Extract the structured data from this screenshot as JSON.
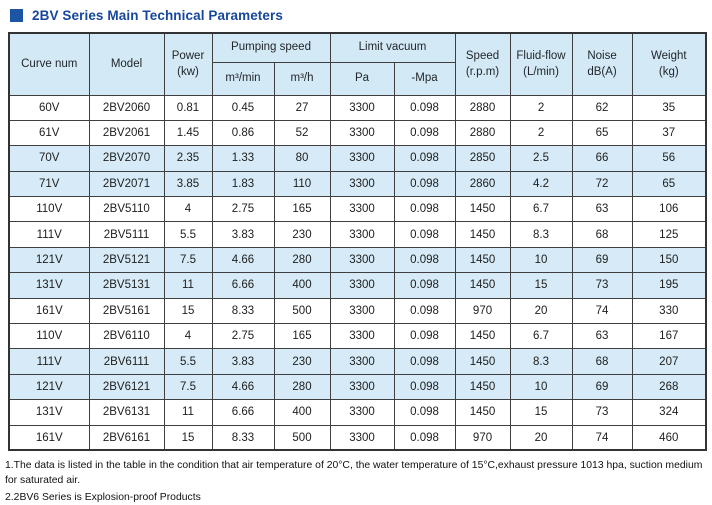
{
  "page_title": "2BV Series Main Technical Parameters",
  "colors": {
    "accent_title": "#16479d",
    "bullet": "#1d55a5",
    "header_bg": "#d3e9f5",
    "stripe_bg": "#d6ebf7",
    "table_border": "#3f3f3f"
  },
  "table": {
    "header": {
      "curve_num": "Curve num",
      "model": "Model",
      "power": "Power\n(kw)",
      "pumping_speed": "Pumping speed",
      "pumping_units": [
        "m³/min",
        "m³/h"
      ],
      "limit_vacuum": "Limit vacuum",
      "vacuum_units": [
        "Pa",
        "-Mpa"
      ],
      "speed": "Speed\n(r.p.m)",
      "fluid_flow": "Fluid-flow\n(L/min)",
      "noise": "Noise\ndB(A)",
      "weight": "Weight\n(kg)"
    },
    "rows": [
      [
        "60V",
        "2BV2060",
        "0.81",
        "0.45",
        "27",
        "3300",
        "0.098",
        "2880",
        "2",
        "62",
        "35"
      ],
      [
        "61V",
        "2BV2061",
        "1.45",
        "0.86",
        "52",
        "3300",
        "0.098",
        "2880",
        "2",
        "65",
        "37"
      ],
      [
        "70V",
        "2BV2070",
        "2.35",
        "1.33",
        "80",
        "3300",
        "0.098",
        "2850",
        "2.5",
        "66",
        "56"
      ],
      [
        "71V",
        "2BV2071",
        "3.85",
        "1.83",
        "110",
        "3300",
        "0.098",
        "2860",
        "4.2",
        "72",
        "65"
      ],
      [
        "110V",
        "2BV5110",
        "4",
        "2.75",
        "165",
        "3300",
        "0.098",
        "1450",
        "6.7",
        "63",
        "106"
      ],
      [
        "111V",
        "2BV5111",
        "5.5",
        "3.83",
        "230",
        "3300",
        "0.098",
        "1450",
        "8.3",
        "68",
        "125"
      ],
      [
        "121V",
        "2BV5121",
        "7.5",
        "4.66",
        "280",
        "3300",
        "0.098",
        "1450",
        "10",
        "69",
        "150"
      ],
      [
        "131V",
        "2BV5131",
        "11",
        "6.66",
        "400",
        "3300",
        "0.098",
        "1450",
        "15",
        "73",
        "195"
      ],
      [
        "161V",
        "2BV5161",
        "15",
        "8.33",
        "500",
        "3300",
        "0.098",
        "970",
        "20",
        "74",
        "330"
      ],
      [
        "110V",
        "2BV6110",
        "4",
        "2.75",
        "165",
        "3300",
        "0.098",
        "1450",
        "6.7",
        "63",
        "167"
      ],
      [
        "111V",
        "2BV6111",
        "5.5",
        "3.83",
        "230",
        "3300",
        "0.098",
        "1450",
        "8.3",
        "68",
        "207"
      ],
      [
        "121V",
        "2BV6121",
        "7.5",
        "4.66",
        "280",
        "3300",
        "0.098",
        "1450",
        "10",
        "69",
        "268"
      ],
      [
        "131V",
        "2BV6131",
        "11",
        "6.66",
        "400",
        "3300",
        "0.098",
        "1450",
        "15",
        "73",
        "324"
      ],
      [
        "161V",
        "2BV6161",
        "15",
        "8.33",
        "500",
        "3300",
        "0.098",
        "970",
        "20",
        "74",
        "460"
      ]
    ]
  },
  "notes": [
    "1.The data is listed in the table in the condition that air temperature of 20°C, the water temperature of 15°C,exhaust pressure 1013 hpa, suction medium for saturated air.",
    "2.2BV6 Series is Explosion-proof Products"
  ]
}
